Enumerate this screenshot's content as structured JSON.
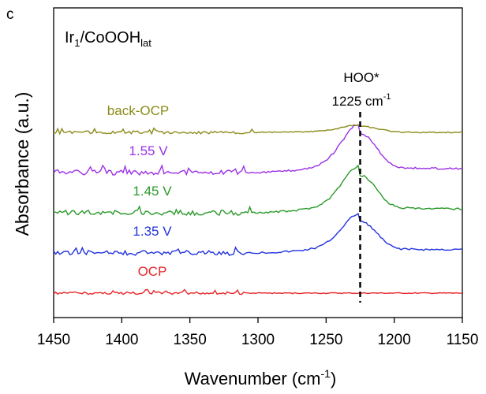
{
  "chart_data": {
    "type": "line",
    "panel_label": "c",
    "sample": {
      "base": "Ir",
      "sub1": "1",
      "mid": "/CoOOH",
      "sub2": "lat"
    },
    "xlabel": {
      "main": "Wavenumber (cm",
      "sup": "-1",
      "close": ")"
    },
    "ylabel": "Absorbance (a.u.)",
    "xlim": [
      1450,
      1150
    ],
    "x_reversed": true,
    "xticks": [
      1450,
      1400,
      1350,
      1300,
      1250,
      1200,
      1150
    ],
    "annotation": {
      "label": "HOO*",
      "value": "1225 cm",
      "sup": "-1",
      "x": 1225
    },
    "series": [
      {
        "name": "OCP",
        "color": "#e8262a",
        "offset": 0.0,
        "peak_height": 0.0,
        "noise": 0.5
      },
      {
        "name": "1.35 V",
        "color": "#2233dd",
        "offset": 1.0,
        "peak_height": 1.05,
        "noise": 1.0
      },
      {
        "name": "1.45 V",
        "color": "#2a9a2a",
        "offset": 2.0,
        "peak_height": 1.25,
        "noise": 1.0
      },
      {
        "name": "1.55 V",
        "color": "#9b30e6",
        "offset": 3.0,
        "peak_height": 1.3,
        "noise": 1.0
      },
      {
        "name": "back-OCP",
        "color": "#8b8b1a",
        "offset": 4.0,
        "peak_height": 0.2,
        "noise": 0.6
      }
    ]
  }
}
